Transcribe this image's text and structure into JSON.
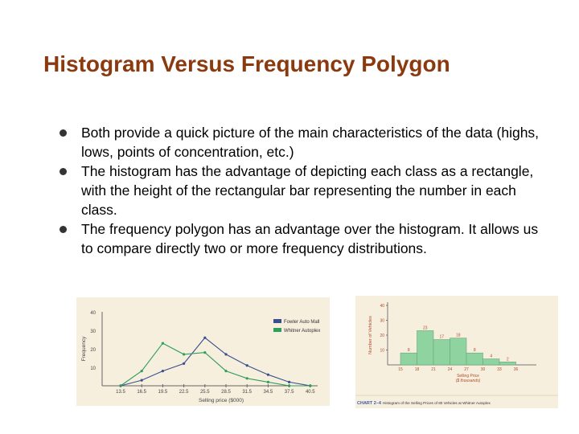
{
  "slide": {
    "title": "Histogram Versus Frequency Polygon",
    "bullets": [
      "Both provide a quick picture of the main characteristics of the data (highs, lows, points of concentration, etc.)",
      "The histogram has the advantage of depicting each class as a rectangle, with the height of the rectangular bar representing the number in each class.",
      "The frequency polygon has an advantage over the histogram. It allows us to compare directly two or more frequency distributions."
    ]
  },
  "chart_data": [
    {
      "type": "line",
      "xlabel": "Selling price ($000)",
      "ylabel": "Frequency",
      "x": [
        "13.5",
        "16.5",
        "19.5",
        "22.5",
        "25.5",
        "28.5",
        "31.5",
        "34.5",
        "37.5",
        "40.5"
      ],
      "ylim": [
        0,
        40
      ],
      "yticks": [
        10,
        20,
        30,
        40
      ],
      "series": [
        {
          "name": "Fowler Auto Mall",
          "color": "#3b4f8f",
          "values": [
            0,
            3,
            8,
            12,
            26,
            17,
            11,
            6,
            2,
            0
          ]
        },
        {
          "name": "Whitner Autoplex",
          "color": "#2f9e5a",
          "values": [
            0,
            8,
            23,
            17,
            18,
            8,
            4,
            2,
            0,
            0
          ]
        }
      ],
      "legend": "top-right"
    },
    {
      "type": "bar",
      "xlabel": "Selling Price ($ thousands)",
      "ylabel": "Number of Vehicles",
      "edges": [
        "15",
        "18",
        "21",
        "24",
        "27",
        "30",
        "33",
        "36"
      ],
      "values": [
        8,
        23,
        17,
        18,
        8,
        4,
        2
      ],
      "ylim": [
        0,
        40
      ],
      "yticks": [
        10,
        20,
        30,
        40
      ],
      "bar_color": "#8fd4a0",
      "caption_label": "CHART 2–4",
      "caption_text": "Histogram of the Selling Prices of 80 Vehicles at Whitner Autoplex"
    }
  ],
  "colors": {
    "title": "#8b3a10",
    "figure_bg": "#f7efde",
    "axis_label": "#b04a2a"
  }
}
